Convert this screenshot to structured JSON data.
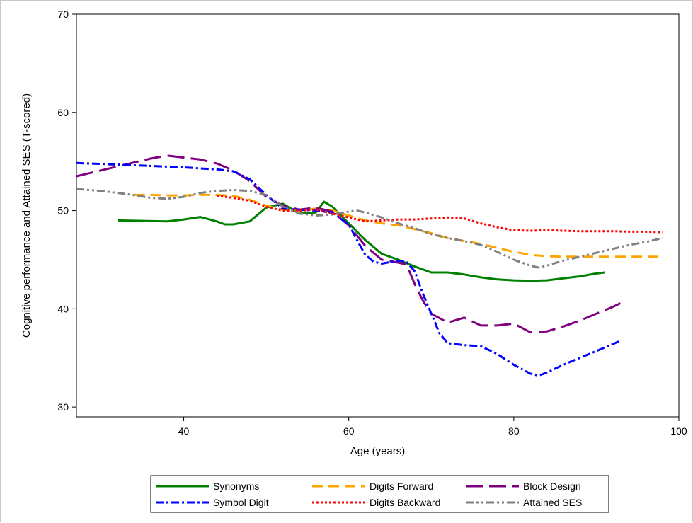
{
  "chart_data": {
    "type": "line",
    "title": "",
    "xlabel": "Age (years)",
    "ylabel": "Cognitive performance and Attained SES (T-scored)",
    "xlim": [
      27,
      100
    ],
    "ylim": [
      29,
      70
    ],
    "xticks": [
      40,
      60,
      80,
      100
    ],
    "yticks": [
      30,
      40,
      50,
      60,
      70
    ],
    "grid": false,
    "legend_position": "bottom",
    "series": [
      {
        "name": "Synonyms",
        "color": "#008000",
        "dash": "solid",
        "x": [
          32,
          35,
          38,
          40,
          42,
          44,
          45,
          46,
          48,
          50,
          52,
          54,
          56,
          57,
          58,
          60,
          62,
          64,
          66,
          68,
          70,
          72,
          74,
          76,
          78,
          80,
          82,
          84,
          86,
          88,
          90,
          91
        ],
        "y": [
          49.0,
          48.95,
          48.9,
          49.1,
          49.35,
          48.9,
          48.6,
          48.6,
          48.9,
          50.3,
          50.7,
          49.7,
          49.8,
          50.9,
          50.4,
          48.7,
          47.0,
          45.6,
          45.0,
          44.3,
          43.7,
          43.7,
          43.5,
          43.2,
          43.0,
          42.9,
          42.85,
          42.9,
          43.1,
          43.3,
          43.6,
          43.7
        ]
      },
      {
        "name": "Digits Forward",
        "color": "#FFA500",
        "dash": "long",
        "x": [
          34,
          36,
          38,
          40,
          42,
          44,
          46,
          48,
          50,
          52,
          54,
          56,
          58,
          60,
          62,
          64,
          66,
          68,
          70,
          72,
          74,
          76,
          78,
          80,
          82,
          84,
          86,
          88,
          90,
          92,
          94,
          96,
          98
        ],
        "y": [
          51.6,
          51.6,
          51.55,
          51.55,
          51.6,
          51.6,
          51.5,
          51.1,
          50.5,
          50.1,
          50.0,
          50.2,
          50.0,
          49.5,
          49.0,
          48.7,
          48.5,
          48.1,
          47.7,
          47.2,
          46.9,
          46.6,
          46.2,
          45.8,
          45.5,
          45.35,
          45.3,
          45.3,
          45.3,
          45.3,
          45.3,
          45.3,
          45.3
        ]
      },
      {
        "name": "Block Design",
        "color": "#800080",
        "dash": "longlong",
        "x": [
          27,
          30,
          33,
          36,
          38,
          40,
          42,
          44,
          46,
          48,
          50,
          52,
          54,
          56,
          58,
          60,
          62,
          64,
          66,
          67,
          68,
          69,
          70,
          72,
          74,
          76,
          78,
          80,
          82,
          84,
          86,
          88,
          90,
          92,
          93
        ],
        "y": [
          53.5,
          54.1,
          54.7,
          55.3,
          55.6,
          55.4,
          55.2,
          54.8,
          54.1,
          53.0,
          51.4,
          50.5,
          50.1,
          50.3,
          49.9,
          48.5,
          46.4,
          45.0,
          44.7,
          44.5,
          42.5,
          40.8,
          39.5,
          38.6,
          39.1,
          38.3,
          38.3,
          38.5,
          37.6,
          37.7,
          38.2,
          38.8,
          39.5,
          40.2,
          40.6
        ]
      },
      {
        "name": "Symbol Digit",
        "color": "#0000FF",
        "dash": "dashdot",
        "x": [
          27,
          30,
          33,
          36,
          40,
          42,
          44,
          46,
          48,
          50,
          52,
          54,
          56,
          58,
          60,
          61,
          62,
          63,
          64,
          66,
          67,
          68,
          69,
          70,
          71,
          72,
          74,
          76,
          78,
          80,
          82,
          83,
          84,
          86,
          88,
          90,
          92,
          93
        ],
        "y": [
          54.85,
          54.75,
          54.65,
          54.55,
          54.4,
          54.3,
          54.2,
          54.0,
          53.2,
          51.6,
          50.2,
          50.1,
          50.0,
          49.8,
          48.6,
          47.0,
          45.5,
          44.8,
          44.6,
          44.9,
          44.8,
          43.8,
          41.5,
          39.5,
          37.5,
          36.5,
          36.3,
          36.2,
          35.4,
          34.3,
          33.4,
          33.2,
          33.5,
          34.3,
          35.0,
          35.7,
          36.4,
          36.8
        ]
      },
      {
        "name": "Digits Backward",
        "color": "#FF0000",
        "dash": "dotted",
        "x": [
          44,
          46,
          48,
          50,
          52,
          54,
          56,
          58,
          60,
          62,
          64,
          66,
          68,
          70,
          72,
          74,
          76,
          78,
          80,
          82,
          84,
          86,
          88,
          90,
          92,
          94,
          96,
          98
        ],
        "y": [
          51.5,
          51.3,
          51.0,
          50.4,
          50.0,
          50.0,
          50.1,
          49.7,
          49.3,
          48.9,
          49.0,
          49.1,
          49.1,
          49.2,
          49.3,
          49.2,
          48.7,
          48.3,
          48.0,
          47.95,
          48.0,
          47.95,
          47.9,
          47.9,
          47.9,
          47.85,
          47.85,
          47.8
        ]
      },
      {
        "name": "Attained SES",
        "color": "#808080",
        "dash": "dashdotdot",
        "x": [
          27,
          30,
          33,
          36,
          38,
          40,
          42,
          44,
          46,
          48,
          50,
          52,
          54,
          56,
          58,
          60,
          61,
          62,
          64,
          66,
          68,
          70,
          72,
          74,
          76,
          78,
          80,
          82,
          83,
          84,
          86,
          88,
          90,
          92,
          94,
          96,
          98
        ],
        "y": [
          52.2,
          52.0,
          51.7,
          51.3,
          51.2,
          51.4,
          51.8,
          52.0,
          52.1,
          52.0,
          51.6,
          50.4,
          49.7,
          49.5,
          49.6,
          49.9,
          50.0,
          49.8,
          49.3,
          48.7,
          48.2,
          47.6,
          47.2,
          46.9,
          46.5,
          45.8,
          45.0,
          44.4,
          44.2,
          44.4,
          44.9,
          45.3,
          45.7,
          46.1,
          46.5,
          46.8,
          47.2
        ]
      }
    ]
  }
}
